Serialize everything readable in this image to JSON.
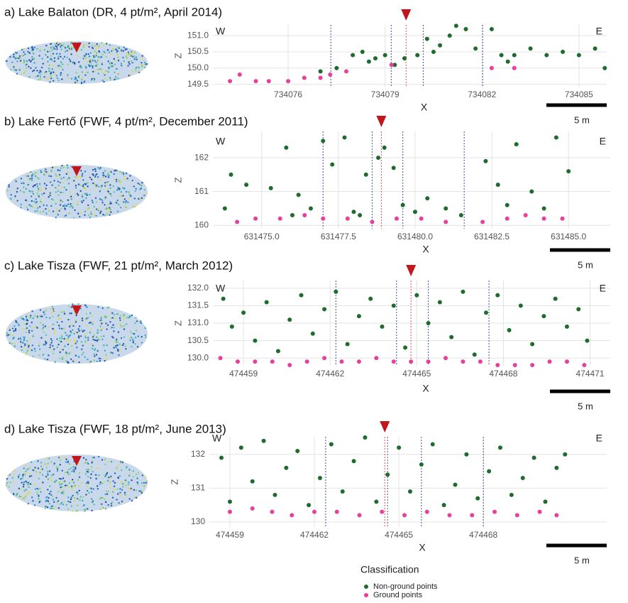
{
  "chart_data": [
    {
      "type": "scatter",
      "title": "a) Lake Balaton (DR, 4 pt/m², April 2014)",
      "xlabel": "X",
      "ylabel": "Z",
      "left_label": "W",
      "right_label": "E",
      "scale_label": "5 m",
      "xlim": [
        734073.67,
        734085.86
      ],
      "ylim": [
        149.43,
        151.33
      ],
      "xticks": [
        734076,
        734079,
        734082,
        734085
      ],
      "yticks": [
        {
          "value": 151.0,
          "label": "151.0"
        },
        {
          "value": 150.5,
          "label": "150.5"
        },
        {
          "value": 150.0,
          "label": "150.0"
        },
        {
          "value": 149.5,
          "label": "149.5"
        }
      ],
      "grid": true,
      "marker_x": 734079.65,
      "reference_lines": [
        {
          "x": 734077.32,
          "color": "#3b4bb0"
        },
        {
          "x": 734079.19,
          "color": "#3b4bb0"
        },
        {
          "x": 734079.65,
          "color": "#e05050"
        },
        {
          "x": 734080.18,
          "color": "#3b4bb0"
        },
        {
          "x": 734082.02,
          "color": "#3b4bb0"
        }
      ],
      "series": [
        {
          "color": "#1e6b2e",
          "x": [
            734077.0,
            734077.5,
            734078.0,
            734078.3,
            734078.7,
            734079.0,
            734079.3,
            734079.6,
            734080.0,
            734080.3,
            734080.7,
            734081.0,
            734081.2,
            734081.5,
            734081.8,
            734082.3,
            734082.6,
            734083.0,
            734083.5,
            734084.0,
            734084.5,
            734085.0,
            734085.5,
            734085.8,
            734078.5,
            734080.5,
            734082.8
          ],
          "values": [
            149.9,
            150.0,
            150.4,
            150.5,
            150.3,
            150.4,
            150.1,
            150.3,
            150.4,
            150.9,
            150.7,
            151.0,
            151.3,
            151.2,
            150.6,
            151.2,
            150.4,
            150.4,
            150.6,
            150.4,
            150.5,
            150.4,
            150.6,
            150.0,
            150.2,
            150.5,
            150.2
          ]
        },
        {
          "color": "#e8409a",
          "x": [
            734074.2,
            734074.5,
            734075.0,
            734075.4,
            734076.0,
            734076.5,
            734077.0,
            734077.3,
            734077.8,
            734079.2,
            734082.3,
            734083.0
          ],
          "values": [
            149.6,
            149.8,
            149.6,
            149.6,
            149.6,
            149.7,
            149.7,
            149.8,
            149.9,
            150.1,
            150.0,
            150.0
          ]
        }
      ]
    },
    {
      "type": "scatter",
      "title": "b) Lake Fertő (FWF, 4 pt/m², December 2011)",
      "xlabel": "X",
      "ylabel": "Z",
      "left_label": "W",
      "right_label": "E",
      "scale_label": "5 m",
      "xlim": [
        631473.41,
        631486.36
      ],
      "ylim": [
        159.9,
        162.78
      ],
      "xticks": [
        {
          "value": 631475.0,
          "label": "631475.0"
        },
        {
          "value": 631477.5,
          "label": "631477.5"
        },
        {
          "value": 631480.0,
          "label": "631480.0"
        },
        {
          "value": 631482.5,
          "label": "631482.5"
        },
        {
          "value": 631485.0,
          "label": "631485.0"
        }
      ],
      "yticks": [
        162,
        161,
        160
      ],
      "grid": true,
      "marker_x": 631478.9,
      "reference_lines": [
        {
          "x": 631477.0,
          "color": "#3b4bb0"
        },
        {
          "x": 631478.6,
          "color": "#3b4bb0"
        },
        {
          "x": 631478.9,
          "color": "#e05050"
        },
        {
          "x": 631479.6,
          "color": "#3b4bb0"
        },
        {
          "x": 631481.6,
          "color": "#3b4bb0"
        }
      ],
      "series": [
        {
          "color": "#1e6b2e",
          "x": [
            631473.8,
            631474.0,
            631474.5,
            631475.3,
            631475.8,
            631476.2,
            631476.6,
            631477.0,
            631477.3,
            631477.7,
            631478.0,
            631478.4,
            631478.8,
            631479.0,
            631479.3,
            631479.6,
            631480.0,
            631480.4,
            631481.0,
            631481.5,
            631482.3,
            631482.7,
            631483.3,
            631483.8,
            631484.2,
            631484.6,
            631485.0,
            631478.2,
            631476.0,
            631483.0
          ],
          "values": [
            160.5,
            161.5,
            161.2,
            161.1,
            162.3,
            160.9,
            160.5,
            162.5,
            161.8,
            162.6,
            160.4,
            161.5,
            162.0,
            162.3,
            161.7,
            160.6,
            160.4,
            160.8,
            160.5,
            160.3,
            161.9,
            161.2,
            162.4,
            161.0,
            160.5,
            162.6,
            161.6,
            160.3,
            160.3,
            160.6
          ]
        },
        {
          "color": "#e8409a",
          "x": [
            631474.2,
            631474.8,
            631475.6,
            631476.4,
            631477.0,
            631477.8,
            631478.6,
            631479.4,
            631480.2,
            631481.0,
            631482.2,
            631483.0,
            631483.6,
            631484.2,
            631484.8
          ],
          "values": [
            160.1,
            160.2,
            160.2,
            160.3,
            160.2,
            160.2,
            160.1,
            160.2,
            160.2,
            160.1,
            160.1,
            160.2,
            160.3,
            160.2,
            160.2
          ]
        }
      ]
    },
    {
      "type": "scatter",
      "title": "c) Lake Tisza (FWF, 21 pt/m², March 2012)",
      "xlabel": "X",
      "ylabel": "Z",
      "left_label": "W",
      "right_label": "E",
      "scale_label": "5 m",
      "xlim": [
        474457.94,
        474471.7
      ],
      "ylim": [
        129.78,
        132.22
      ],
      "xticks": [
        474459,
        474462,
        474465,
        474468,
        474471
      ],
      "yticks": [
        {
          "value": 132.0,
          "label": "132.0"
        },
        {
          "value": 131.5,
          "label": "131.5"
        },
        {
          "value": 131.0,
          "label": "131.0"
        },
        {
          "value": 130.5,
          "label": "130.5"
        },
        {
          "value": 130.0,
          "label": "130.0"
        }
      ],
      "grid": true,
      "marker_x": 474464.8,
      "reference_lines": [
        {
          "x": 474462.2,
          "color": "#3b4bb0"
        },
        {
          "x": 474464.3,
          "color": "#3b4bb0"
        },
        {
          "x": 474464.8,
          "color": "#e05050"
        },
        {
          "x": 474465.4,
          "color": "#3b4bb0"
        },
        {
          "x": 474467.5,
          "color": "#3b4bb0"
        }
      ],
      "series": [
        {
          "color": "#1e6b2e",
          "x": [
            474458.3,
            474458.6,
            474459.0,
            474459.4,
            474459.8,
            474460.2,
            474460.6,
            474461.0,
            474461.4,
            474461.8,
            474462.2,
            474462.6,
            474463.0,
            474463.4,
            474463.8,
            474464.2,
            474464.6,
            474465.0,
            474465.4,
            474465.8,
            474466.2,
            474466.6,
            474467.0,
            474467.4,
            474467.8,
            474468.2,
            474468.6,
            474469.0,
            474469.4,
            474469.8,
            474470.2,
            474470.6,
            474470.9
          ],
          "values": [
            131.7,
            130.9,
            131.3,
            130.5,
            131.6,
            130.2,
            131.1,
            131.8,
            130.7,
            131.4,
            131.9,
            130.4,
            131.2,
            131.7,
            130.9,
            131.5,
            130.3,
            131.8,
            131.0,
            131.6,
            130.6,
            131.9,
            130.1,
            131.3,
            131.8,
            130.8,
            131.5,
            130.4,
            131.2,
            131.7,
            130.9,
            131.4,
            130.5
          ]
        },
        {
          "color": "#e8409a",
          "x": [
            474458.2,
            474458.8,
            474459.4,
            474460.0,
            474460.6,
            474461.2,
            474461.8,
            474462.4,
            474463.0,
            474463.6,
            474464.2,
            474464.8,
            474465.4,
            474466.0,
            474466.6,
            474467.2,
            474467.8,
            474468.4,
            474469.0,
            474469.6,
            474470.2,
            474470.8
          ],
          "values": [
            130.0,
            129.9,
            129.9,
            129.9,
            129.8,
            129.9,
            130.0,
            129.9,
            129.9,
            130.0,
            129.9,
            129.9,
            129.9,
            130.0,
            129.9,
            129.9,
            129.8,
            129.8,
            129.8,
            129.9,
            129.9,
            129.8
          ]
        }
      ]
    },
    {
      "type": "scatter",
      "title": "d) Lake Tisza (FWF, 18 pt/m², June 2013)",
      "xlabel": "X",
      "ylabel": "Z",
      "left_label": "W",
      "right_label": "E",
      "scale_label": "5 m",
      "xlim": [
        474458.27,
        474472.38
      ],
      "ylim": [
        129.85,
        132.52
      ],
      "xticks": [
        474459,
        474462,
        474465,
        474468
      ],
      "yticks": [
        132,
        131,
        130
      ],
      "grid": true,
      "marker_x": 474464.5,
      "reference_lines": [
        {
          "x": 474462.4,
          "color": "#3b4bb0"
        },
        {
          "x": 474464.6,
          "color": "#3b4bb0"
        },
        {
          "x": 474464.5,
          "color": "#e05050"
        },
        {
          "x": 474465.8,
          "color": "#3b4bb0"
        },
        {
          "x": 474468.0,
          "color": "#3b4bb0"
        }
      ],
      "series": [
        {
          "color": "#1e6b2e",
          "x": [
            474458.7,
            474459.0,
            474459.4,
            474459.8,
            474460.2,
            474460.6,
            474461.0,
            474461.4,
            474461.8,
            474462.2,
            474462.6,
            474463.0,
            474463.4,
            474463.8,
            474464.2,
            474464.6,
            474465.0,
            474465.4,
            474465.8,
            474466.2,
            474466.6,
            474467.0,
            474467.4,
            474467.8,
            474468.2,
            474468.6,
            474469.0,
            474469.4,
            474469.8,
            474470.2,
            474470.6,
            474470.9
          ],
          "values": [
            131.9,
            130.6,
            132.2,
            131.2,
            132.4,
            130.8,
            131.6,
            132.1,
            130.5,
            131.3,
            132.3,
            130.9,
            131.8,
            132.5,
            130.6,
            131.4,
            132.2,
            130.9,
            131.7,
            132.3,
            130.5,
            131.1,
            132.0,
            130.7,
            131.5,
            132.2,
            130.8,
            131.3,
            131.9,
            130.6,
            131.6,
            132.0
          ]
        },
        {
          "color": "#e8409a",
          "x": [
            474459.0,
            474459.8,
            474460.5,
            474461.2,
            474462.0,
            474462.8,
            474463.6,
            474464.4,
            474465.2,
            474466.0,
            474466.8,
            474467.6,
            474468.4,
            474469.2,
            474470.0,
            474470.6
          ],
          "values": [
            130.3,
            130.4,
            130.3,
            130.2,
            130.3,
            130.3,
            130.2,
            130.3,
            130.2,
            130.3,
            130.2,
            130.2,
            130.3,
            130.2,
            130.3,
            130.2
          ]
        }
      ]
    }
  ],
  "legend": {
    "title": "Classification",
    "entries": [
      {
        "name": "Non-ground points",
        "color": "#1e6b2e"
      },
      {
        "name": "Ground points",
        "color": "#e8409a"
      }
    ]
  }
}
